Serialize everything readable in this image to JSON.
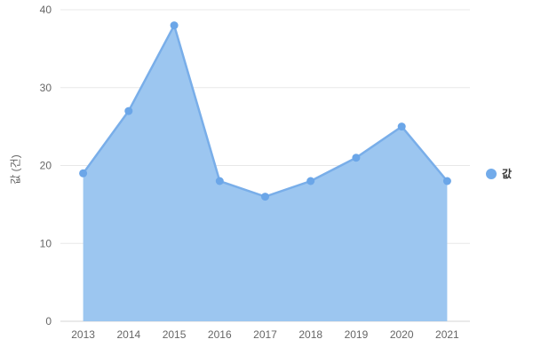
{
  "chart_data": {
    "type": "area",
    "categories": [
      "2013",
      "2014",
      "2015",
      "2016",
      "2017",
      "2018",
      "2019",
      "2020",
      "2021"
    ],
    "series": [
      {
        "name": "값",
        "values": [
          19,
          27,
          38,
          18,
          16,
          18,
          21,
          25,
          18
        ]
      }
    ],
    "title": "",
    "xlabel": "",
    "ylabel": "값 (건)",
    "ylim": [
      0,
      40
    ],
    "yticks": [
      0,
      10,
      20,
      30,
      40
    ],
    "grid": true,
    "legend_position": "right",
    "colors": {
      "fill": "#9cc6f0",
      "line": "#79aee9",
      "marker": "#6ba6e8",
      "legend_dot": "#72abea",
      "gridline": "#e8e8e8",
      "axis_line": "#d6d6d6",
      "tick_label": "#666666",
      "legend_text": "#333333"
    }
  }
}
